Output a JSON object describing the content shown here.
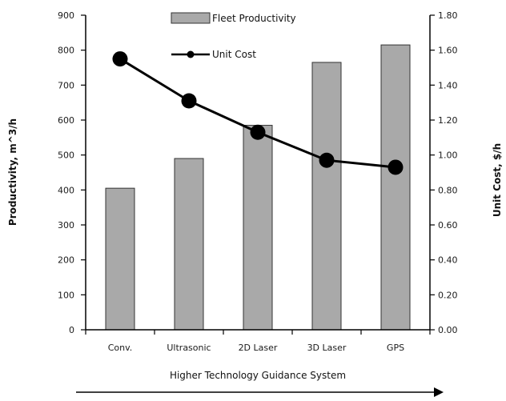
{
  "chart_data": {
    "type": "bar",
    "categories": [
      "Conv.",
      "Ultrasonic",
      "2D Laser",
      "3D Laser",
      "GPS"
    ],
    "series": [
      {
        "name": "Fleet Productivity",
        "type": "bar",
        "axis": "left",
        "values": [
          405,
          490,
          585,
          765,
          815
        ]
      },
      {
        "name": "Unit Cost",
        "type": "line",
        "axis": "right",
        "values": [
          1.55,
          1.31,
          1.13,
          0.97,
          0.93
        ]
      }
    ],
    "xlabel": "Higher Technology Guidance System",
    "ylabel": "Productivity, m^3/h",
    "ylabel_right": "Unit Cost, $/h",
    "ylim": [
      0,
      900
    ],
    "ylim_right": [
      0.0,
      1.8
    ],
    "yticks": [
      "0",
      "100",
      "200",
      "300",
      "400",
      "500",
      "600",
      "700",
      "800",
      "900"
    ],
    "yticks_right": [
      "0.00",
      "0.20",
      "0.40",
      "0.60",
      "0.80",
      "1.00",
      "1.20",
      "1.40",
      "1.60",
      "1.80"
    ],
    "legend_position": "top",
    "grid": false,
    "colors": {
      "bar": "#a9a9a9",
      "bar_stroke": "#333333",
      "line": "#000000"
    }
  }
}
